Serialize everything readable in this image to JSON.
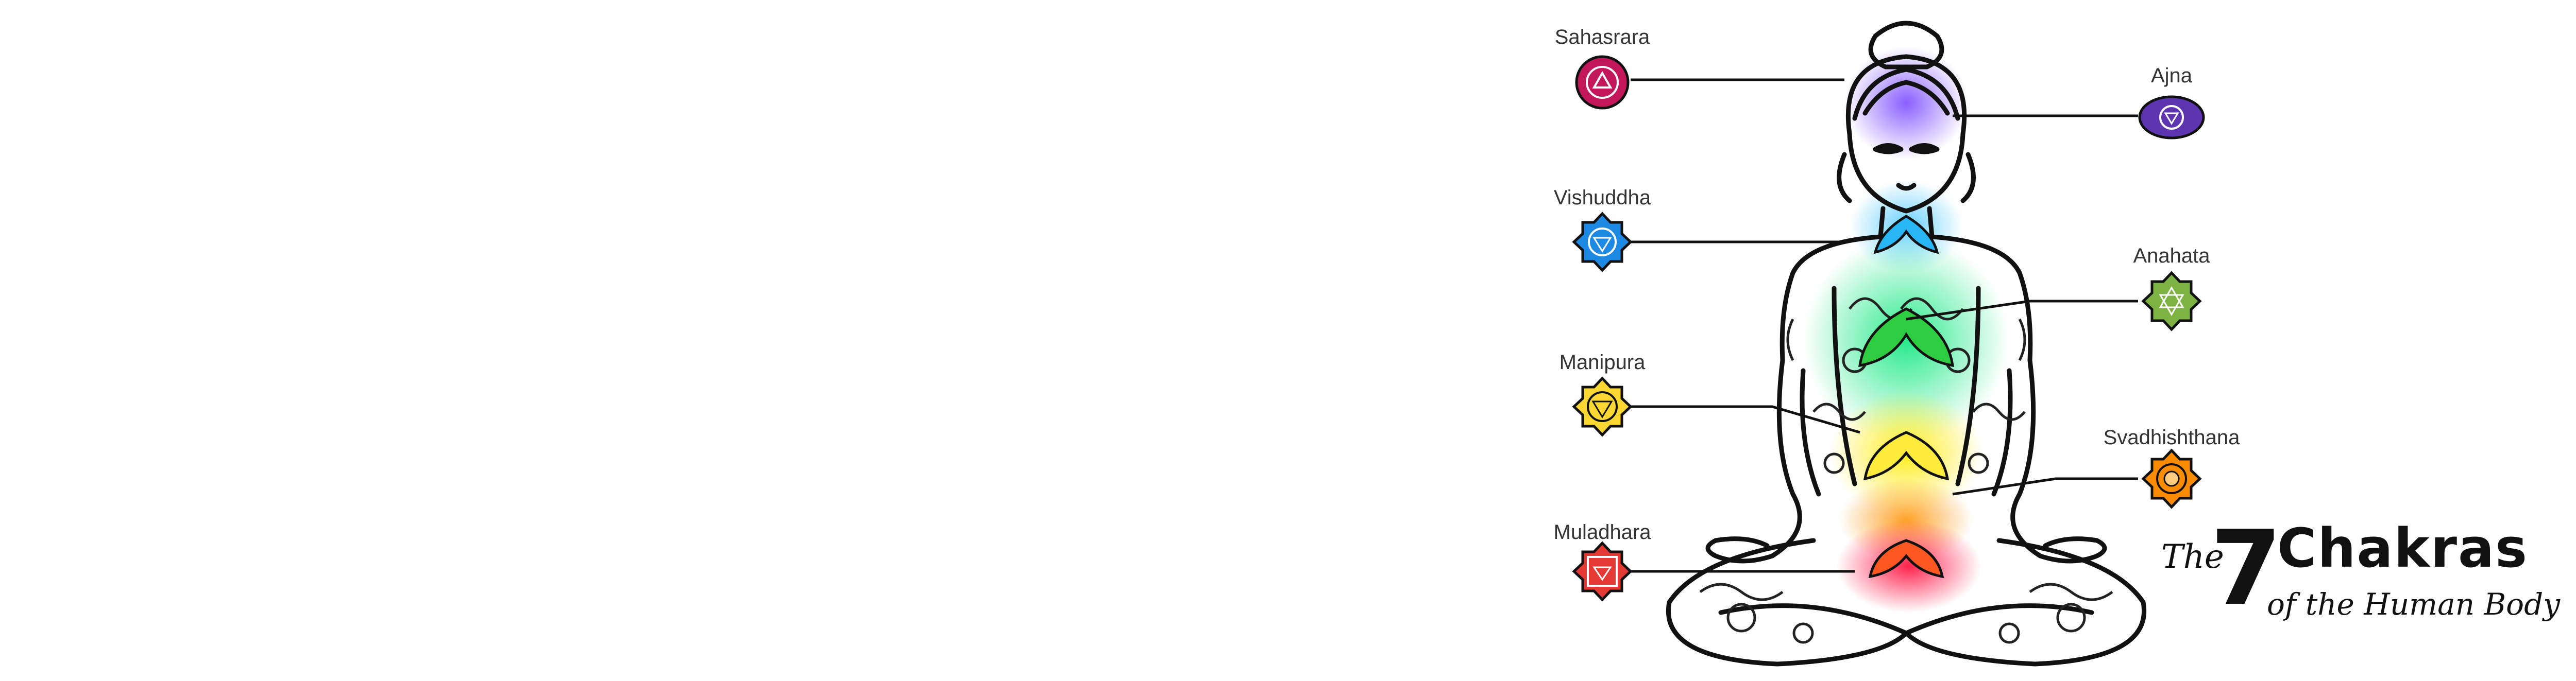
{
  "chakras": [
    {
      "name": "Sahasrara",
      "color": "#c2185b",
      "side": "left"
    },
    {
      "name": "Ajna",
      "color": "#5e35b1",
      "side": "right"
    },
    {
      "name": "Vishuddha",
      "color": "#1e88e5",
      "side": "left"
    },
    {
      "name": "Anahata",
      "color": "#7cb342",
      "side": "right"
    },
    {
      "name": "Manipura",
      "color": "#fdd835",
      "side": "left"
    },
    {
      "name": "Svadhishthana",
      "color": "#fb8c00",
      "side": "right"
    },
    {
      "name": "Muladhara",
      "color": "#e53935",
      "side": "left"
    }
  ],
  "title": {
    "the": "The",
    "number": "7",
    "word": "Chakras",
    "subtitle": "of the Human Body"
  }
}
